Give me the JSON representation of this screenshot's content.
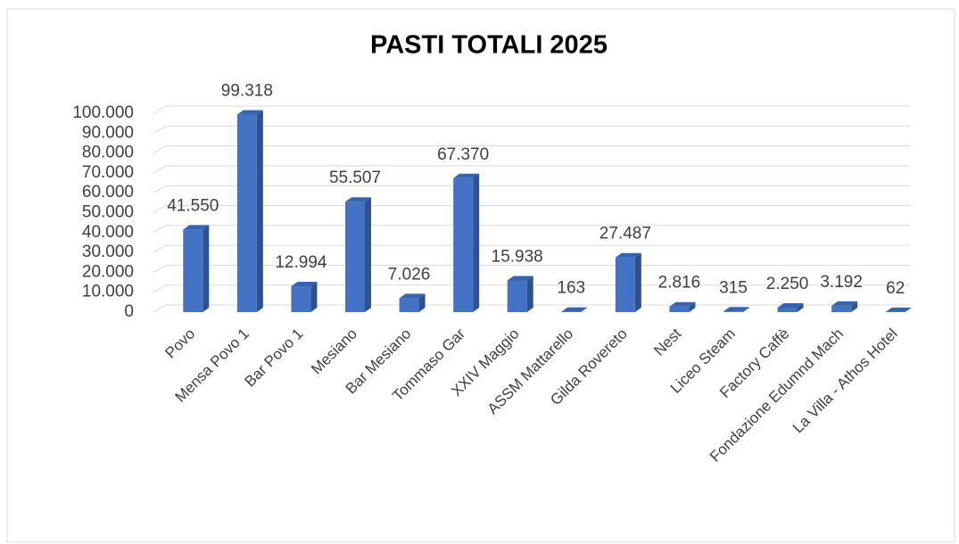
{
  "chart_data": {
    "type": "bar3d",
    "title": "PASTI TOTALI 2025",
    "categories": [
      "Povo",
      "Mensa Povo 1",
      "Bar Povo 1",
      "Mesiano",
      "Bar Mesiano",
      "Tommaso Gar",
      "XXIV Maggio",
      "ASSM Mattarello",
      "Gilda Rovereto",
      "Nest",
      "Liceo Steam",
      "Factory Caffè",
      "Fondazione Edumnd Mach",
      "La Villa - Athos Hotel"
    ],
    "values": [
      41550,
      99318,
      12994,
      55507,
      7026,
      67370,
      15938,
      163,
      27487,
      2816,
      315,
      2250,
      3192,
      62
    ],
    "value_labels": [
      "41.550",
      "99.318",
      "12.994",
      "55.507",
      "7.026",
      "67.370",
      "15.938",
      "163",
      "27.487",
      "2.816",
      "315",
      "2.250",
      "3.192",
      "62"
    ],
    "color": "#4472c4",
    "ylim": [
      0,
      100000
    ],
    "yticks": [
      0,
      {
        "value": 10000,
        "label": "10.000"
      },
      {
        "value": 20000,
        "label": "20.000"
      },
      {
        "value": 30000,
        "label": "30.000"
      },
      {
        "value": 40000,
        "label": "40.000"
      },
      {
        "value": 50000,
        "label": "50.000"
      },
      {
        "value": 60000,
        "label": "60.000"
      },
      {
        "value": 70000,
        "label": "70.000"
      },
      {
        "value": 80000,
        "label": "80.000"
      },
      {
        "value": 90000,
        "label": "90.000"
      },
      {
        "value": 100000,
        "label": "100.000"
      }
    ],
    "grid": true
  }
}
